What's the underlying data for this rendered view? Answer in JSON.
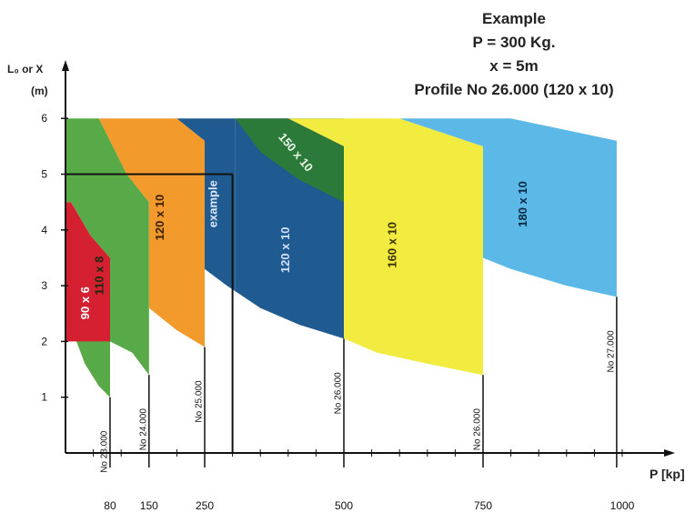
{
  "example_box": {
    "line1": "Example",
    "line2": "P = 300 Kg.",
    "line3": "x = 5m",
    "line4": "Profile No 26.000 (120 x 10)"
  },
  "chart_data": {
    "type": "area",
    "xlabel": "P [kp]",
    "ylabel_line1": "L₀ or X",
    "ylabel_line2": "(m)",
    "x_ticks": [
      "80",
      "150",
      "250",
      "500",
      "750",
      "1000"
    ],
    "y_ticks": [
      "1",
      "2",
      "3",
      "4",
      "5",
      "6"
    ],
    "xlim": [
      0,
      1050
    ],
    "ylim": [
      0,
      6
    ],
    "regions": [
      {
        "label": "90 x 6",
        "color": "#d42030",
        "label_color": "#ffffff",
        "points": [
          [
            0,
            2
          ],
          [
            0,
            4.5
          ],
          [
            10,
            4.5
          ],
          [
            45,
            3.9
          ],
          [
            80,
            3.5
          ],
          [
            80,
            1
          ],
          [
            60,
            1.2
          ],
          [
            35,
            1.6
          ],
          [
            20,
            2
          ]
        ]
      },
      {
        "label": "110 x 8",
        "color": "#58aa48",
        "label_color": "#1a2a10",
        "points": [
          [
            0,
            2
          ],
          [
            20,
            2
          ],
          [
            35,
            1.6
          ],
          [
            60,
            1.2
          ],
          [
            80,
            1
          ],
          [
            80,
            3.5
          ],
          [
            45,
            3.9
          ],
          [
            10,
            4.5
          ],
          [
            0,
            4.5
          ],
          [
            0,
            6
          ],
          [
            60,
            6
          ],
          [
            110,
            5
          ],
          [
            150,
            4.5
          ],
          [
            150,
            1.4
          ],
          [
            120,
            1.8
          ],
          [
            80,
            2
          ]
        ]
      },
      {
        "label": "120 x 10",
        "color": "#f39a2c",
        "label_color": "#3a2000",
        "points": [
          [
            60,
            6
          ],
          [
            200,
            6
          ],
          [
            250,
            5.6
          ],
          [
            250,
            1.9
          ],
          [
            200,
            2.2
          ],
          [
            150,
            2.6
          ],
          [
            150,
            4.5
          ],
          [
            110,
            5
          ]
        ]
      },
      {
        "label": "example",
        "color": "#1f5a90",
        "label_color": "#dde8ff",
        "points": [
          [
            200,
            6
          ],
          [
            305,
            6
          ],
          [
            305,
            2.9
          ],
          [
            290,
            3.0
          ],
          [
            250,
            3.3
          ],
          [
            250,
            5.6
          ]
        ]
      },
      {
        "label": "120 x 10",
        "color": "#1f5a90",
        "label_color": "#cfe0ff",
        "points": [
          [
            305,
            6
          ],
          [
            500,
            6
          ],
          [
            500,
            2.05
          ],
          [
            420,
            2.3
          ],
          [
            350,
            2.6
          ],
          [
            305,
            2.9
          ]
        ]
      },
      {
        "label": "150 x 10",
        "color": "#2c7a3a",
        "label_color": "#e8f8e8",
        "points": [
          [
            305,
            6
          ],
          [
            400,
            6
          ],
          [
            500,
            5.5
          ],
          [
            500,
            4.5
          ],
          [
            420,
            4.9
          ],
          [
            350,
            5.4
          ]
        ]
      },
      {
        "label": "160 x 10",
        "color": "#f2ec40",
        "label_color": "#3a3000",
        "points": [
          [
            400,
            6
          ],
          [
            600,
            6
          ],
          [
            750,
            5.5
          ],
          [
            750,
            1.4
          ],
          [
            650,
            1.6
          ],
          [
            560,
            1.8
          ],
          [
            500,
            2.05
          ],
          [
            500,
            5.5
          ]
        ]
      },
      {
        "label": "180 x 10",
        "color": "#5cb8e6",
        "label_color": "#0a2a44",
        "points": [
          [
            600,
            6
          ],
          [
            800,
            6
          ],
          [
            990,
            5.6
          ],
          [
            990,
            2.8
          ],
          [
            900,
            3.0
          ],
          [
            800,
            3.3
          ],
          [
            750,
            3.5
          ],
          [
            750,
            5.5
          ]
        ]
      }
    ],
    "profile_lines": [
      {
        "label": "No 23.000",
        "x": 80,
        "top": 1
      },
      {
        "label": "No 24.000",
        "x": 150,
        "top": 1.4
      },
      {
        "label": "No 25.000",
        "x": 250,
        "top": 1.9
      },
      {
        "label": "No 26.000",
        "x": 500,
        "top": 2.05
      },
      {
        "label": "No 26.000",
        "x": 750,
        "top": 1.4
      },
      {
        "label": "No 27.000",
        "x": 990,
        "top": 2.8
      }
    ],
    "example_point": {
      "x": 300,
      "y": 5
    }
  }
}
